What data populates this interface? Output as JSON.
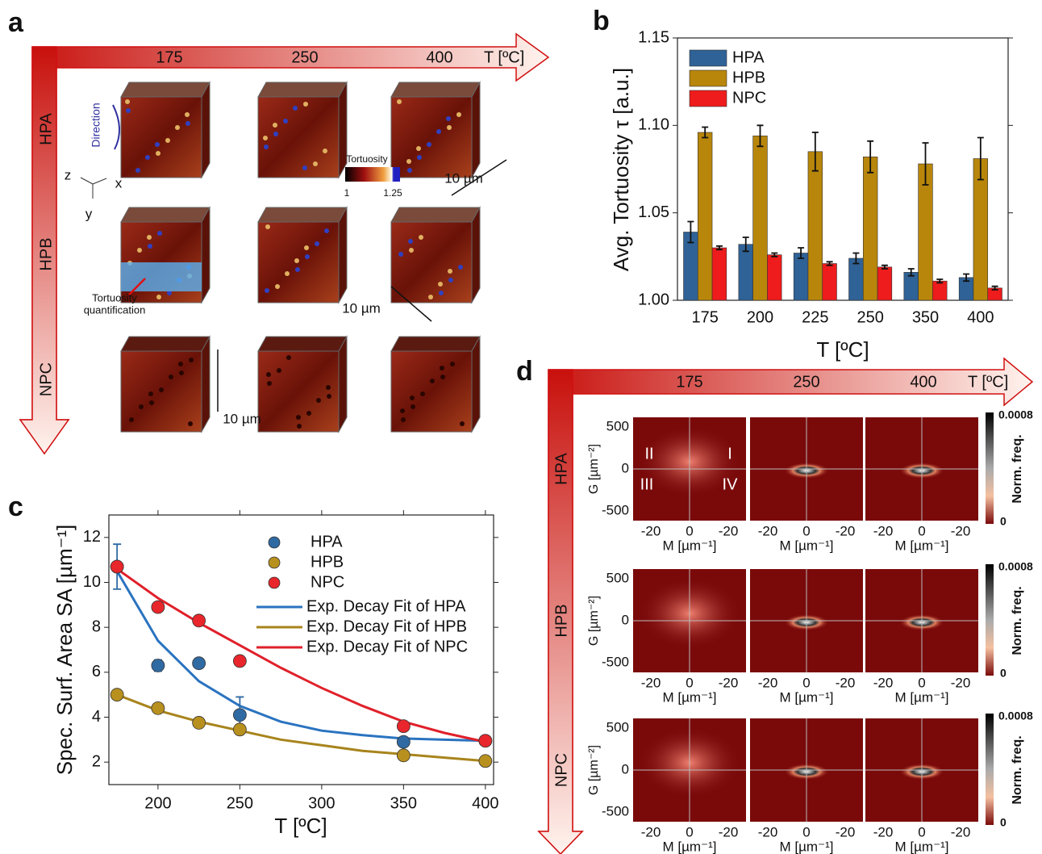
{
  "panel_labels": [
    "a",
    "b",
    "c",
    "d"
  ],
  "panel_a": {
    "temps": [
      "175",
      "250",
      "400"
    ],
    "axis_label": "T [ºC]",
    "rows": [
      "HPA",
      "HPB",
      "NPC"
    ],
    "direction": "Direction",
    "axes": [
      "z",
      "x",
      "y"
    ],
    "colorbar": {
      "label": "Tortuosity",
      "min": "1",
      "max": "1.25"
    },
    "scale_bar": "10 µm",
    "quantification": [
      "Tortuosity",
      "quantification"
    ]
  },
  "chart_data": [
    {
      "type": "bar",
      "categories": [
        "175",
        "200",
        "225",
        "250",
        "350",
        "400"
      ],
      "series": [
        {
          "name": "HPA",
          "color": "#2f6296",
          "values": [
            1.039,
            1.032,
            1.027,
            1.024,
            1.016,
            1.013
          ],
          "errors": [
            0.006,
            0.004,
            0.003,
            0.003,
            0.002,
            0.002
          ]
        },
        {
          "name": "HPB",
          "color": "#b8860b",
          "values": [
            1.096,
            1.094,
            1.085,
            1.082,
            1.078,
            1.081
          ],
          "errors": [
            0.003,
            0.006,
            0.011,
            0.009,
            0.012,
            0.012
          ]
        },
        {
          "name": "NPC",
          "color": "#ee1c1c",
          "values": [
            1.03,
            1.026,
            1.021,
            1.019,
            1.011,
            1.007
          ],
          "errors": [
            0.001,
            0.001,
            0.001,
            0.001,
            0.001,
            0.001
          ]
        }
      ],
      "ylim": [
        1.0,
        1.15
      ],
      "yticks": [
        {
          "value": 1.0,
          "label": "1.00"
        },
        1.05,
        {
          "value": 1.1,
          "label": "1.10"
        },
        1.15
      ],
      "xlabel": "T [ºC]",
      "ylabel": "Avg. Tortuosity  τ [a.u.]",
      "legend": "upper left"
    },
    {
      "type": "scatter",
      "x": [
        175,
        200,
        225,
        250,
        350,
        400
      ],
      "series": [
        {
          "name": "HPA",
          "color": "#2f6aa3",
          "values": [
            10.7,
            6.3,
            6.4,
            4.1,
            2.9,
            2.95
          ],
          "errors": [
            1.0,
            0.25,
            0.2,
            0.8,
            0.2,
            0.2
          ]
        },
        {
          "name": "HPB",
          "color": "#b8901e",
          "values": [
            5.0,
            4.4,
            3.75,
            3.45,
            2.3,
            2.05
          ]
        },
        {
          "name": "NPC",
          "color": "#e8262b",
          "values": [
            10.7,
            8.9,
            8.3,
            6.5,
            3.6,
            2.95
          ]
        }
      ],
      "fits": [
        {
          "name": "Exp. Decay Fit of HPA",
          "color": "#2a73c0",
          "x": [
            175,
            200,
            225,
            250,
            275,
            300,
            325,
            350,
            375,
            400
          ],
          "values": [
            10.5,
            7.4,
            5.6,
            4.5,
            3.8,
            3.4,
            3.2,
            3.05,
            3.0,
            2.95
          ]
        },
        {
          "name": "Exp. Decay Fit of HPB",
          "color": "#a8841c",
          "x": [
            175,
            200,
            225,
            250,
            275,
            300,
            325,
            350,
            375,
            400
          ],
          "values": [
            5.0,
            4.3,
            3.8,
            3.4,
            3.0,
            2.75,
            2.5,
            2.35,
            2.2,
            2.05
          ]
        },
        {
          "name": "Exp. Decay Fit of NPC",
          "color": "#e0202a",
          "x": [
            175,
            200,
            225,
            250,
            275,
            300,
            325,
            350,
            375,
            400
          ],
          "values": [
            10.6,
            9.3,
            8.2,
            7.2,
            6.2,
            5.3,
            4.5,
            3.8,
            3.3,
            2.9
          ]
        }
      ],
      "xlim": [
        170,
        405
      ],
      "xticks": [
        200,
        250,
        300,
        350,
        400
      ],
      "ylim": [
        1,
        13
      ],
      "yticks": [
        2,
        4,
        6,
        8,
        10,
        12
      ],
      "xlabel": "T [ºC]",
      "ylabel": "Spec. Surf. Area SA [µm⁻¹]",
      "legend": "upper right"
    }
  ],
  "panel_d": {
    "temps": [
      "175",
      "250",
      "400"
    ],
    "axis_label": "T [ºC]",
    "rows": [
      "HPA",
      "HPB",
      "NPC"
    ],
    "y_label": "G [µm⁻²]",
    "y_ticks": [
      "500",
      "0",
      "-500"
    ],
    "x_label": "M [µm⁻¹]",
    "x_ticks": [
      "-20",
      "0",
      "-20"
    ],
    "colorbar": {
      "max": "0.0008",
      "min": "0",
      "label": "Norm. freq."
    },
    "quadrants": [
      "II",
      "I",
      "III",
      "IV"
    ]
  }
}
